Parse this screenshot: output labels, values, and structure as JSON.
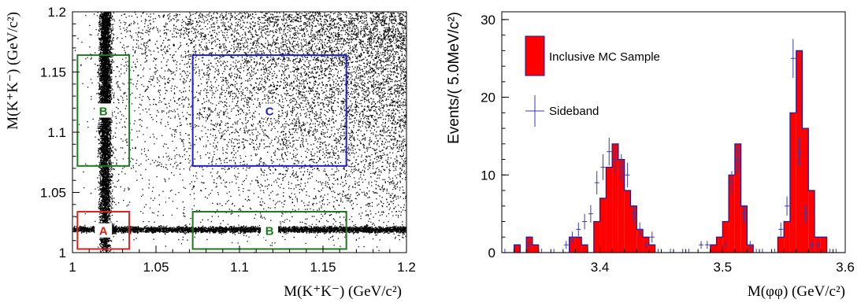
{
  "chart_data": [
    {
      "type": "scatter",
      "xlabel": "M(K⁺K⁻) (GeV/c²)",
      "ylabel": "M(K⁺K⁻) (GeV/c²)",
      "xlim": [
        1.0,
        1.2
      ],
      "ylim": [
        1.0,
        1.2
      ],
      "x_ticks": [
        "1",
        "1.05",
        "1.1",
        "1.15",
        "1.2"
      ],
      "y_ticks": [
        "1",
        "1.05",
        "1.1",
        "1.15",
        "1.2"
      ],
      "x_tick_values": [
        1.0,
        1.05,
        1.1,
        1.15,
        1.2
      ],
      "y_tick_values": [
        1.0,
        1.05,
        1.1,
        1.15,
        1.2
      ],
      "phi_mass": 1.0195,
      "regions": [
        {
          "label": "A",
          "color": "#e0201c",
          "x": [
            1.003,
            1.034
          ],
          "y": [
            1.003,
            1.034
          ]
        },
        {
          "label": "B",
          "color": "#1e7a1e",
          "x": [
            1.003,
            1.034
          ],
          "y": [
            1.072,
            1.164
          ]
        },
        {
          "label": "B",
          "color": "#1e7a1e",
          "x": [
            1.072,
            1.164
          ],
          "y": [
            1.003,
            1.034
          ]
        },
        {
          "label": "C",
          "color": "#1f1fd0",
          "x": [
            1.072,
            1.164
          ],
          "y": [
            1.072,
            1.164
          ]
        }
      ]
    },
    {
      "type": "bar",
      "xlabel": "M(φφ) (GeV/c²)",
      "ylabel": "Events/( 5.0MeV/c²)",
      "xlim": [
        3.32,
        3.6
      ],
      "ylim": [
        0,
        31
      ],
      "x_ticks": [
        "3.4",
        "3.5",
        "3.6"
      ],
      "y_ticks": [
        "0",
        "10",
        "20",
        "30"
      ],
      "x_tick_values": [
        3.4,
        3.5,
        3.6
      ],
      "y_tick_values": [
        0,
        10,
        20,
        30
      ],
      "bin_width": 0.005,
      "fill_color": "#ff0000",
      "edge_color": "#1a1aa0",
      "sideband_color": "#3a3aa8",
      "legend": [
        {
          "label": "Inclusive MC Sample",
          "style": "filled-box"
        },
        {
          "label": "Sideband",
          "style": "cross"
        }
      ],
      "series": [
        {
          "name": "Inclusive MC Sample",
          "bin_low_edges": [
            3.32,
            3.325,
            3.33,
            3.335,
            3.34,
            3.345,
            3.35,
            3.355,
            3.36,
            3.365,
            3.37,
            3.375,
            3.38,
            3.385,
            3.39,
            3.395,
            3.4,
            3.405,
            3.41,
            3.415,
            3.42,
            3.425,
            3.43,
            3.435,
            3.44,
            3.445,
            3.45,
            3.455,
            3.46,
            3.465,
            3.47,
            3.475,
            3.48,
            3.485,
            3.49,
            3.495,
            3.5,
            3.505,
            3.51,
            3.515,
            3.52,
            3.525,
            3.53,
            3.535,
            3.54,
            3.545,
            3.55,
            3.555,
            3.56,
            3.565,
            3.57,
            3.575,
            3.58,
            3.585,
            3.59,
            3.595
          ],
          "values": [
            0,
            0,
            1,
            0,
            2,
            1,
            0,
            0,
            0,
            0,
            0,
            2,
            2,
            1,
            0,
            4,
            7,
            11,
            14,
            12,
            8,
            6,
            3,
            2,
            1,
            0,
            0,
            0,
            0,
            0,
            0,
            0,
            0,
            0,
            1,
            2,
            4,
            10,
            14,
            6,
            1,
            0,
            0,
            0,
            0,
            2,
            4,
            18,
            26,
            16,
            8,
            2,
            2,
            0,
            0,
            0
          ]
        },
        {
          "name": "Sideband",
          "points": [
            [
              3.3225,
              0
            ],
            [
              3.3425,
              1
            ],
            [
              3.3525,
              0
            ],
            [
              3.3625,
              0
            ],
            [
              3.3725,
              1
            ],
            [
              3.3775,
              2
            ],
            [
              3.3825,
              3
            ],
            [
              3.3875,
              4
            ],
            [
              3.3925,
              5
            ],
            [
              3.3975,
              9
            ],
            [
              3.4025,
              11
            ],
            [
              3.4075,
              13
            ],
            [
              3.4125,
              12
            ],
            [
              3.4175,
              11
            ],
            [
              3.4225,
              10
            ],
            [
              3.4275,
              5
            ],
            [
              3.4325,
              3
            ],
            [
              3.4375,
              1
            ],
            [
              3.4425,
              2
            ],
            [
              3.4475,
              0
            ],
            [
              3.4575,
              0
            ],
            [
              3.4675,
              0
            ],
            [
              3.4725,
              0
            ],
            [
              3.4825,
              1
            ],
            [
              3.4875,
              1
            ],
            [
              3.4925,
              0
            ],
            [
              3.4975,
              0
            ],
            [
              3.5025,
              1
            ],
            [
              3.5075,
              9
            ],
            [
              3.5125,
              12
            ],
            [
              3.5175,
              5
            ],
            [
              3.5225,
              1
            ],
            [
              3.5275,
              0
            ],
            [
              3.5325,
              0
            ],
            [
              3.5425,
              0
            ],
            [
              3.5475,
              3
            ],
            [
              3.5525,
              6
            ],
            [
              3.5575,
              25
            ],
            [
              3.5625,
              13
            ],
            [
              3.5675,
              5
            ],
            [
              3.5725,
              1
            ],
            [
              3.5775,
              1
            ],
            [
              3.5825,
              0
            ],
            [
              3.5875,
              0
            ],
            [
              3.5925,
              0
            ]
          ]
        }
      ]
    }
  ]
}
